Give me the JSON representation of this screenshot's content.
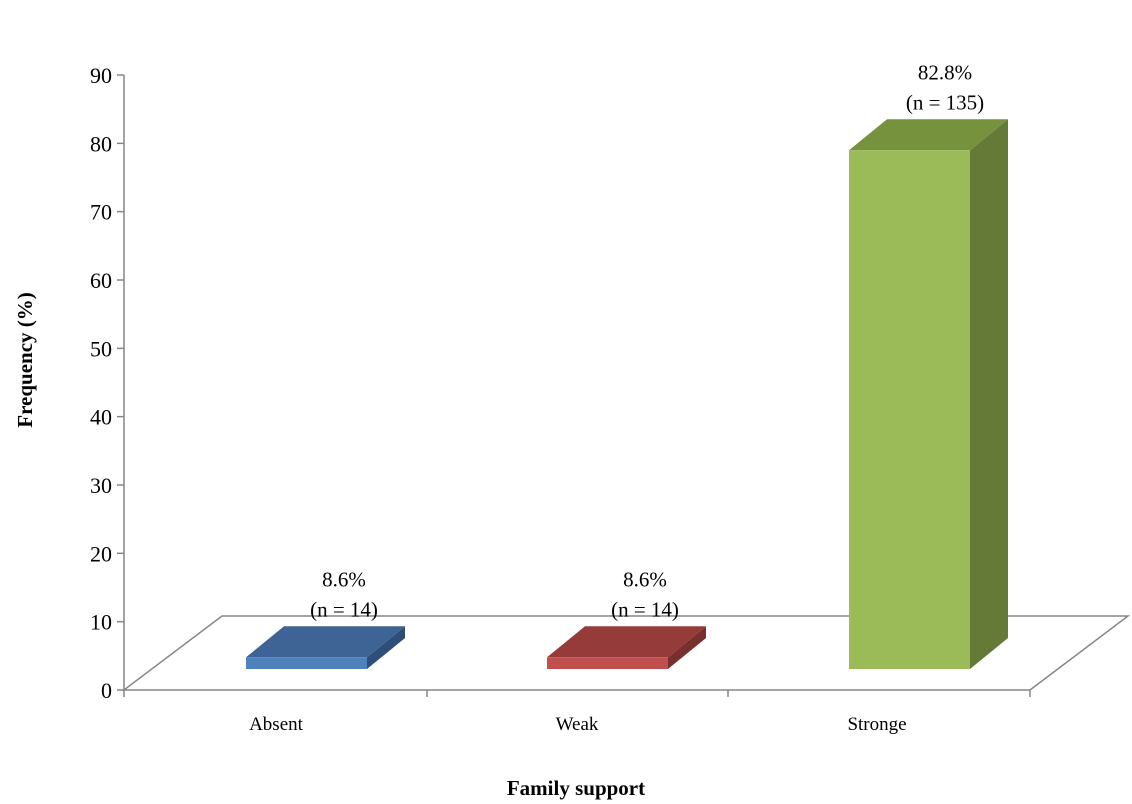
{
  "chart_data": {
    "type": "bar",
    "title": "",
    "xlabel": "Family support",
    "ylabel": "Frequency (%)",
    "ylim": [
      0,
      90
    ],
    "yticks": [
      0,
      10,
      20,
      30,
      40,
      50,
      60,
      70,
      80,
      90
    ],
    "grid": false,
    "legend": "none",
    "style": "3d-column",
    "categories": [
      "Absent",
      "Weak",
      "Stronge"
    ],
    "values": [
      8.6,
      8.6,
      82.8
    ],
    "data_labels": [
      {
        "percent": "8.6%",
        "count": "(n = 14)"
      },
      {
        "percent": "8.6%",
        "count": "(n = 14)"
      },
      {
        "percent": "82.8%",
        "count": "(n = 135)"
      }
    ],
    "colors": {
      "front": [
        "#4F81BD",
        "#C0504D",
        "#9BBB59"
      ],
      "top": [
        "#3D6494",
        "#953C3A",
        "#76923C"
      ],
      "side": [
        "#2F4E77",
        "#77302E",
        "#647A36"
      ],
      "axis": "#868686"
    }
  }
}
